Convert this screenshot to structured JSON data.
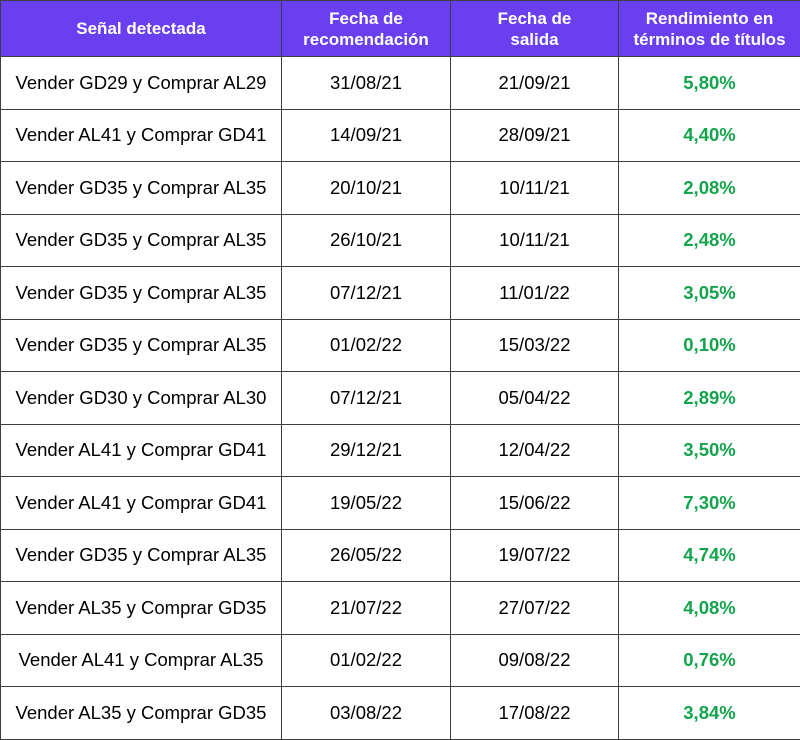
{
  "table": {
    "headers": [
      {
        "lines": [
          "Señal detectada"
        ]
      },
      {
        "lines": [
          "Fecha de",
          "recomendación"
        ]
      },
      {
        "lines": [
          "Fecha de",
          "salida"
        ]
      },
      {
        "lines": [
          "Rendimiento en",
          "términos de títulos"
        ]
      }
    ],
    "colors": {
      "header_bg": "#6a3ff0",
      "header_text": "#ffffff",
      "performance_text": "#14a44d",
      "border": "#3d3d3d"
    },
    "rows": [
      {
        "signal": "Vender GD29 y Comprar AL29",
        "recommendation_date": "31/08/21",
        "exit_date": "21/09/21",
        "performance": "5,80%"
      },
      {
        "signal": "Vender AL41 y Comprar GD41",
        "recommendation_date": "14/09/21",
        "exit_date": "28/09/21",
        "performance": "4,40%"
      },
      {
        "signal": "Vender GD35 y Comprar AL35",
        "recommendation_date": "20/10/21",
        "exit_date": "10/11/21",
        "performance": "2,08%"
      },
      {
        "signal": "Vender GD35 y Comprar AL35",
        "recommendation_date": "26/10/21",
        "exit_date": "10/11/21",
        "performance": "2,48%"
      },
      {
        "signal": "Vender GD35 y Comprar AL35",
        "recommendation_date": "07/12/21",
        "exit_date": "11/01/22",
        "performance": "3,05%"
      },
      {
        "signal": "Vender GD35 y Comprar AL35",
        "recommendation_date": "01/02/22",
        "exit_date": "15/03/22",
        "performance": "0,10%"
      },
      {
        "signal": "Vender GD30 y Comprar AL30",
        "recommendation_date": "07/12/21",
        "exit_date": "05/04/22",
        "performance": "2,89%"
      },
      {
        "signal": "Vender AL41 y Comprar GD41",
        "recommendation_date": "29/12/21",
        "exit_date": "12/04/22",
        "performance": "3,50%"
      },
      {
        "signal": "Vender AL41 y Comprar GD41",
        "recommendation_date": "19/05/22",
        "exit_date": "15/06/22",
        "performance": "7,30%"
      },
      {
        "signal": "Vender GD35 y Comprar AL35",
        "recommendation_date": "26/05/22",
        "exit_date": "19/07/22",
        "performance": "4,74%"
      },
      {
        "signal": "Vender AL35 y Comprar GD35",
        "recommendation_date": "21/07/22",
        "exit_date": "27/07/22",
        "performance": "4,08%"
      },
      {
        "signal": "Vender AL41 y Comprar AL35",
        "recommendation_date": "01/02/22",
        "exit_date": "09/08/22",
        "performance": "0,76%"
      },
      {
        "signal": "Vender AL35 y Comprar GD35",
        "recommendation_date": "03/08/22",
        "exit_date": "17/08/22",
        "performance": "3,84%"
      }
    ]
  }
}
